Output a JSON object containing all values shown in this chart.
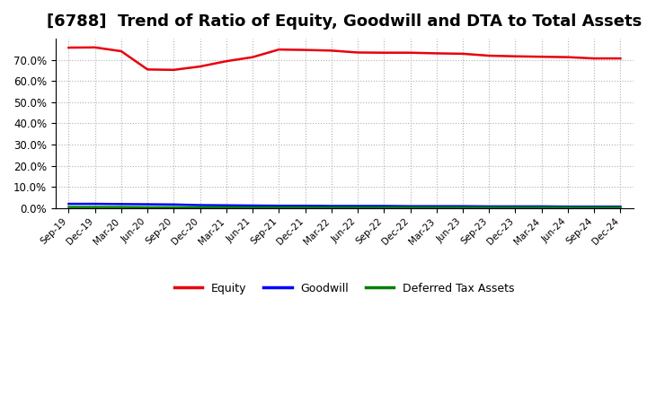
{
  "title": "[6788]  Trend of Ratio of Equity, Goodwill and DTA to Total Assets",
  "x_labels": [
    "Sep-19",
    "Dec-19",
    "Mar-20",
    "Jun-20",
    "Sep-20",
    "Dec-20",
    "Mar-21",
    "Jun-21",
    "Sep-21",
    "Dec-21",
    "Mar-22",
    "Jun-22",
    "Sep-22",
    "Dec-22",
    "Mar-23",
    "Jun-23",
    "Sep-23",
    "Dec-23",
    "Mar-24",
    "Jun-24",
    "Sep-24",
    "Dec-24"
  ],
  "equity": [
    0.757,
    0.758,
    0.74,
    0.654,
    0.652,
    0.668,
    0.693,
    0.712,
    0.748,
    0.746,
    0.743,
    0.734,
    0.733,
    0.733,
    0.73,
    0.728,
    0.719,
    0.716,
    0.714,
    0.712,
    0.706,
    0.706
  ],
  "goodwill": [
    0.02,
    0.02,
    0.019,
    0.018,
    0.017,
    0.014,
    0.013,
    0.012,
    0.011,
    0.011,
    0.01,
    0.01,
    0.01,
    0.009,
    0.009,
    0.009,
    0.008,
    0.008,
    0.008,
    0.007,
    0.007,
    0.007
  ],
  "dta": [
    0.005,
    0.005,
    0.005,
    0.004,
    0.004,
    0.004,
    0.004,
    0.003,
    0.003,
    0.003,
    0.003,
    0.003,
    0.003,
    0.003,
    0.003,
    0.003,
    0.003,
    0.003,
    0.003,
    0.003,
    0.003,
    0.003
  ],
  "equity_color": "#e8000d",
  "goodwill_color": "#0000ff",
  "dta_color": "#008000",
  "ylim": [
    0.0,
    0.8
  ],
  "yticks": [
    0.0,
    0.1,
    0.2,
    0.3,
    0.4,
    0.5,
    0.6,
    0.7
  ],
  "background_color": "#ffffff",
  "grid_color": "#b0b0b0",
  "title_fontsize": 13,
  "legend_labels": [
    "Equity",
    "Goodwill",
    "Deferred Tax Assets"
  ]
}
